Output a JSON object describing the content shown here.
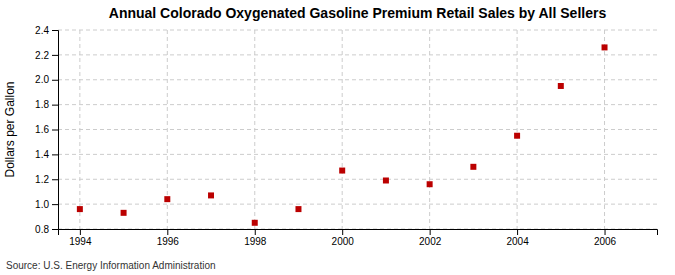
{
  "chart_data": {
    "type": "scatter",
    "title": "Annual Colorado Oxygenated Gasoline Premium Retail Sales by All Sellers",
    "ylabel": "Dollars per Gallon",
    "annotations": [
      "Source: U.S. Energy Information Administration"
    ],
    "x": [
      1994,
      1995,
      1996,
      1997,
      1998,
      1999,
      2000,
      2001,
      2002,
      2003,
      2004,
      2005,
      2006
    ],
    "values": [
      0.96,
      0.93,
      1.04,
      1.07,
      0.85,
      0.96,
      1.27,
      1.19,
      1.16,
      1.3,
      1.55,
      1.95,
      2.26
    ],
    "color": "#bb0000",
    "marker": "square",
    "xlim": [
      1993.5,
      2007.2
    ],
    "xticks": [
      1994,
      1996,
      1998,
      2000,
      2002,
      2004,
      2006
    ],
    "ylim": [
      0.8,
      2.4
    ],
    "yticks": [
      0.8,
      {
        "value": 1.0,
        "label": "1.0"
      },
      1.2,
      1.4,
      1.6,
      1.8,
      {
        "value": 2.0,
        "label": "2.0"
      },
      2.2,
      2.4
    ],
    "grid": true
  }
}
